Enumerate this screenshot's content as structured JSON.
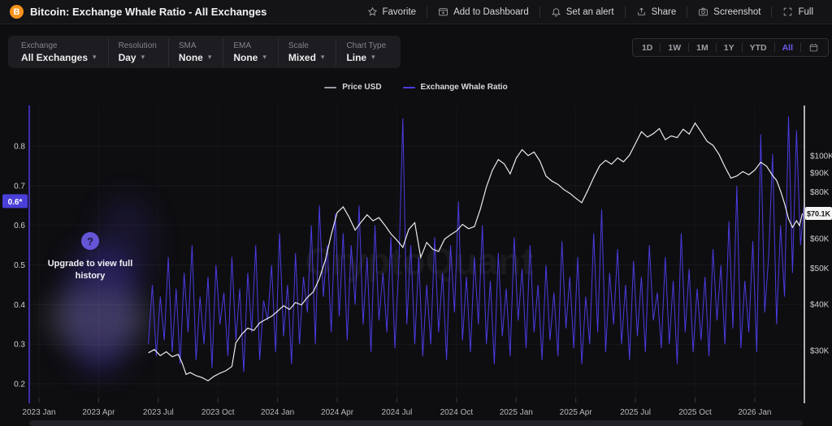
{
  "header": {
    "title": "Bitcoin: Exchange Whale Ratio - All Exchanges",
    "coin_symbol": "B",
    "actions": [
      {
        "label": "Favorite",
        "icon": "star-icon"
      },
      {
        "label": "Add to Dashboard",
        "icon": "dashboard-add-icon"
      },
      {
        "label": "Set an alert",
        "icon": "bell-icon"
      },
      {
        "label": "Share",
        "icon": "share-icon"
      },
      {
        "label": "Screenshot",
        "icon": "camera-icon"
      },
      {
        "label": "Full",
        "icon": "fullscreen-icon"
      }
    ]
  },
  "controls": {
    "groups": [
      {
        "label": "Exchange",
        "value": "All Exchanges"
      },
      {
        "label": "Resolution",
        "value": "Day"
      },
      {
        "label": "SMA",
        "value": "None"
      },
      {
        "label": "EMA",
        "value": "None"
      },
      {
        "label": "Scale",
        "value": "Mixed"
      },
      {
        "label": "Chart Type",
        "value": "Line"
      }
    ],
    "ranges": [
      "1D",
      "1W",
      "1M",
      "1Y",
      "YTD",
      "All"
    ],
    "active_range": "All"
  },
  "legend": [
    {
      "label": "Price USD",
      "color": "#9a9aa2"
    },
    {
      "label": "Exchange Whale Ratio",
      "color": "#4b3be0"
    }
  ],
  "overlay": {
    "upgrade_text": "Upgrade to view full history",
    "help_glyph": "?"
  },
  "watermark": "CryptoQuant",
  "colors": {
    "accent_purple": "#4b3be0",
    "price_line": "#ececee",
    "badge_left_bg": "#4a3fd8",
    "badge_right_bg": "#f4f4f4",
    "bitcoin_orange": "#f7931a"
  },
  "chart_data": {
    "type": "line",
    "title": "Bitcoin: Exchange Whale Ratio - All Exchanges",
    "x_axis": {
      "tick_labels": [
        "2023 Jan",
        "2023 Apr",
        "2023 Jul",
        "2023 Oct",
        "2024 Jan",
        "2024 Apr",
        "2024 Jul",
        "2024 Oct",
        "2025 Jan",
        "2025 Apr",
        "2025 Jul",
        "2025 Oct",
        "2026 Jan"
      ],
      "tick_month_index": [
        0,
        3,
        6,
        9,
        12,
        15,
        18,
        21,
        24,
        27,
        30,
        33,
        36
      ]
    },
    "left_axis": {
      "name": "Exchange Whale Ratio",
      "scale": "linear",
      "ticks": [
        0.2,
        0.3,
        0.4,
        0.5,
        0.6,
        0.7,
        0.8
      ],
      "range": [
        0.17,
        0.9
      ],
      "current_badge": "0.6*",
      "current_value": 0.66
    },
    "right_axis": {
      "name": "Price USD",
      "scale": "log",
      "tick_labels": [
        "$100K",
        "$90K",
        "$80K",
        "$60K",
        "$50K",
        "$40K",
        "$30K"
      ],
      "tick_values_k": [
        100,
        90,
        80,
        60,
        50,
        40,
        30
      ],
      "current_badge": "$70.1K",
      "current_value_k": 70.1
    },
    "series": [
      {
        "name": "Price USD",
        "axis": "right",
        "color": "#ececee",
        "x_months": [
          5.5,
          5.8,
          6.1,
          6.4,
          6.7,
          7.0,
          7.2,
          7.4,
          7.6,
          7.9,
          8.2,
          8.5,
          8.8,
          9.1,
          9.4,
          9.7,
          9.9,
          10.2,
          10.5,
          10.8,
          11.1,
          11.4,
          11.7,
          12.0,
          12.3,
          12.6,
          12.9,
          13.2,
          13.5,
          13.8,
          14.1,
          14.4,
          14.7,
          15.0,
          15.3,
          15.6,
          15.9,
          16.2,
          16.5,
          16.8,
          17.1,
          17.4,
          17.7,
          18.0,
          18.3,
          18.6,
          18.9,
          19.2,
          19.5,
          19.8,
          20.1,
          20.4,
          20.7,
          21.0,
          21.3,
          21.6,
          21.9,
          22.2,
          22.5,
          22.8,
          23.1,
          23.4,
          23.7,
          24.0,
          24.3,
          24.6,
          24.9,
          25.2,
          25.5,
          25.8,
          26.1,
          26.4,
          26.7,
          27.0,
          27.3,
          27.6,
          27.9,
          28.2,
          28.5,
          28.8,
          29.1,
          29.4,
          29.7,
          30.0,
          30.3,
          30.6,
          30.9,
          31.2,
          31.5,
          31.8,
          32.1,
          32.4,
          32.7,
          33.0,
          33.3,
          33.6,
          33.9,
          34.2,
          34.5,
          34.8,
          35.1,
          35.4,
          35.7,
          36.0,
          36.3,
          36.6,
          36.9,
          37.1,
          37.3,
          37.5,
          37.7,
          37.9,
          38.1,
          38.25,
          38.4
        ],
        "values_usd_k": [
          29.6,
          30.2,
          29.1,
          29.8,
          28.9,
          29.3,
          27.8,
          25.9,
          26.2,
          25.7,
          25.4,
          24.9,
          25.6,
          26.1,
          26.5,
          27.2,
          31.5,
          33.2,
          34.5,
          34.0,
          35.6,
          36.4,
          37.1,
          38.3,
          39.6,
          38.7,
          40.4,
          39.8,
          41.7,
          43.2,
          46.8,
          52.5,
          61.5,
          70.5,
          73.0,
          68.5,
          63.2,
          66.4,
          69.5,
          67.0,
          68.3,
          65.1,
          61.8,
          59.4,
          56.8,
          63.5,
          66.2,
          53.4,
          58.6,
          56.2,
          55.4,
          59.8,
          61.4,
          62.9,
          65.5,
          63.8,
          64.6,
          72.0,
          82.5,
          91.4,
          97.8,
          95.2,
          89.5,
          98.6,
          104.0,
          100.2,
          102.5,
          96.8,
          88.3,
          85.6,
          83.9,
          81.2,
          79.4,
          77.0,
          74.9,
          80.8,
          87.5,
          94.2,
          97.3,
          95.0,
          98.8,
          96.4,
          100.5,
          108.0,
          116.2,
          112.4,
          114.8,
          118.5,
          110.6,
          113.2,
          112.0,
          118.0,
          114.5,
          122.5,
          116.0,
          109.5,
          106.8,
          101.0,
          93.5,
          87.2,
          88.4,
          90.8,
          89.0,
          91.6,
          96.2,
          93.8,
          88.5,
          86.0,
          80.5,
          74.5,
          67.8,
          64.3,
          67.0,
          65.0,
          70.1
        ]
      },
      {
        "name": "Exchange Whale Ratio",
        "axis": "left",
        "color": "#4b3be0",
        "x_start_month": 5.5,
        "x_step_month": 0.2,
        "values": [
          0.3,
          0.45,
          0.27,
          0.42,
          0.31,
          0.52,
          0.28,
          0.44,
          0.25,
          0.48,
          0.33,
          0.55,
          0.26,
          0.42,
          0.3,
          0.47,
          0.24,
          0.5,
          0.35,
          0.43,
          0.27,
          0.52,
          0.31,
          0.44,
          0.23,
          0.48,
          0.33,
          0.55,
          0.26,
          0.41,
          0.36,
          0.5,
          0.28,
          0.58,
          0.32,
          0.45,
          0.25,
          0.53,
          0.3,
          0.47,
          0.38,
          0.6,
          0.3,
          0.65,
          0.42,
          0.55,
          0.33,
          0.63,
          0.37,
          0.58,
          0.31,
          0.55,
          0.4,
          0.65,
          0.35,
          0.52,
          0.28,
          0.6,
          0.36,
          0.48,
          0.33,
          0.57,
          0.29,
          0.5,
          0.87,
          0.35,
          0.55,
          0.3,
          0.52,
          0.27,
          0.45,
          0.3,
          0.57,
          0.33,
          0.48,
          0.26,
          0.55,
          0.38,
          0.66,
          0.31,
          0.47,
          0.28,
          0.52,
          0.35,
          0.6,
          0.3,
          0.46,
          0.25,
          0.53,
          0.32,
          0.44,
          0.27,
          0.57,
          0.36,
          0.49,
          0.29,
          0.55,
          0.33,
          0.45,
          0.26,
          0.5,
          0.31,
          0.43,
          0.27,
          0.56,
          0.34,
          0.47,
          0.29,
          0.52,
          0.25,
          0.42,
          0.3,
          0.58,
          0.33,
          0.64,
          0.28,
          0.48,
          0.35,
          0.54,
          0.3,
          0.45,
          0.26,
          0.51,
          0.32,
          0.47,
          0.28,
          0.55,
          0.36,
          0.43,
          0.29,
          0.52,
          0.3,
          0.46,
          0.25,
          0.58,
          0.33,
          0.49,
          0.28,
          0.44,
          0.31,
          0.47,
          0.27,
          0.54,
          0.36,
          0.5,
          0.3,
          0.61,
          0.34,
          0.7,
          0.29,
          0.46,
          0.33,
          0.56,
          0.28,
          0.83,
          0.38,
          0.52,
          0.78,
          0.35,
          0.6,
          0.42,
          0.875,
          0.48,
          0.84,
          0.55,
          0.66
        ]
      }
    ]
  }
}
